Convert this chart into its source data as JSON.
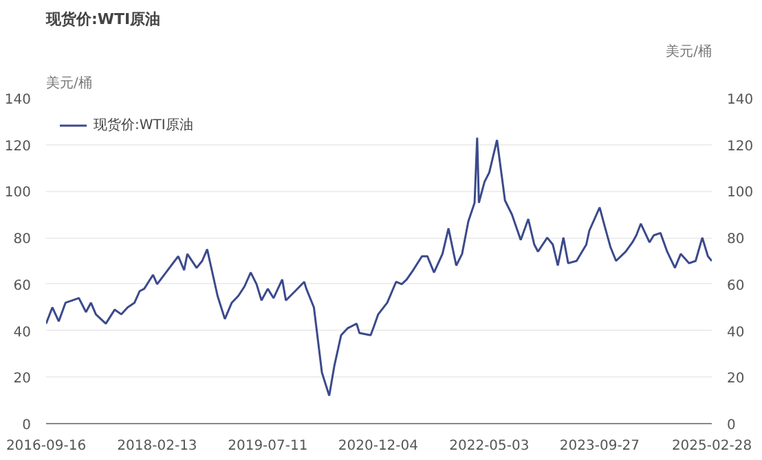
{
  "chart_data": {
    "type": "line",
    "title": "现货价:WTI原油",
    "ylabel": "美元/桶",
    "y2label": "美元/桶",
    "x": [
      "2016-09-16",
      "2016-10-15",
      "2016-11-14",
      "2016-12-15",
      "2017-01-15",
      "2017-02-15",
      "2017-03-20",
      "2017-04-12",
      "2017-05-05",
      "2017-06-20",
      "2017-07-31",
      "2017-08-31",
      "2017-09-29",
      "2017-10-31",
      "2017-11-24",
      "2017-12-15",
      "2018-01-25",
      "2018-02-13",
      "2018-03-26",
      "2018-04-19",
      "2018-05-22",
      "2018-06-18",
      "2018-07-03",
      "2018-08-15",
      "2018-09-10",
      "2018-10-03",
      "2018-11-20",
      "2018-12-24",
      "2019-01-25",
      "2019-02-25",
      "2019-03-25",
      "2019-04-23",
      "2019-05-20",
      "2019-06-12",
      "2019-07-11",
      "2019-08-07",
      "2019-09-16",
      "2019-10-03",
      "2019-11-15",
      "2019-12-27",
      "2020-01-06",
      "2020-02-10",
      "2020-03-18",
      "2020-04-21",
      "2020-05-15",
      "2020-06-15",
      "2020-07-15",
      "2020-08-26",
      "2020-09-08",
      "2020-10-30",
      "2020-11-15",
      "2020-12-04",
      "2021-01-15",
      "2021-02-25",
      "2021-03-23",
      "2021-04-15",
      "2021-05-15",
      "2021-06-25",
      "2021-07-20",
      "2021-08-20",
      "2021-09-28",
      "2021-10-26",
      "2021-12-01",
      "2021-12-28",
      "2022-01-26",
      "2022-02-24",
      "2022-03-08",
      "2022-03-16",
      "2022-04-11",
      "2022-05-03",
      "2022-06-08",
      "2022-07-15",
      "2022-08-16",
      "2022-09-26",
      "2022-10-31",
      "2022-11-28",
      "2022-12-15",
      "2023-01-27",
      "2023-02-22",
      "2023-03-17",
      "2023-04-12",
      "2023-05-04",
      "2023-06-12",
      "2023-07-27",
      "2023-08-10",
      "2023-09-27",
      "2023-10-20",
      "2023-11-16",
      "2023-12-12",
      "2024-01-26",
      "2024-02-26",
      "2024-03-15",
      "2024-04-05",
      "2024-05-15",
      "2024-06-04",
      "2024-07-05",
      "2024-08-05",
      "2024-09-10",
      "2024-10-07",
      "2024-11-15",
      "2024-12-15",
      "2025-01-15",
      "2025-02-10",
      "2025-02-28"
    ],
    "series": [
      {
        "name": "现货价:WTI原油",
        "color": "#3b4a8c",
        "values": [
          43,
          50,
          44,
          52,
          53,
          54,
          48,
          52,
          47,
          43,
          49,
          47,
          50,
          52,
          57,
          58,
          64,
          60,
          65,
          68,
          72,
          66,
          73,
          67,
          70,
          75,
          55,
          45,
          52,
          55,
          59,
          65,
          60,
          53,
          58,
          54,
          62,
          53,
          57,
          61,
          58,
          50,
          22,
          12,
          25,
          38,
          41,
          43,
          39,
          38,
          42,
          47,
          52,
          61,
          60,
          62,
          66,
          72,
          72,
          65,
          73,
          84,
          68,
          73,
          87,
          95,
          123,
          95,
          104,
          108,
          122,
          96,
          90,
          79,
          88,
          77,
          74,
          80,
          77,
          68,
          80,
          69,
          70,
          77,
          83,
          93,
          85,
          76,
          70,
          74,
          78,
          81,
          86,
          78,
          81,
          82,
          74,
          67,
          73,
          69,
          70,
          80,
          72,
          70
        ]
      }
    ],
    "xlim": [
      "2016-09-16",
      "2025-02-28"
    ],
    "xticks": [
      "2016-09-16",
      "2018-02-13",
      "2019-07-11",
      "2020-12-04",
      "2022-05-03",
      "2023-09-27",
      "2025-02-28"
    ],
    "ylim": [
      0,
      140
    ],
    "yticks": [
      0,
      20,
      40,
      60,
      80,
      100,
      120,
      140
    ],
    "y2lim": [
      0,
      140
    ],
    "y2ticks": [
      0,
      20,
      40,
      60,
      80,
      100,
      120,
      140
    ],
    "grid": "y",
    "legend": "top left",
    "line_style": "solid",
    "marker": "none"
  }
}
